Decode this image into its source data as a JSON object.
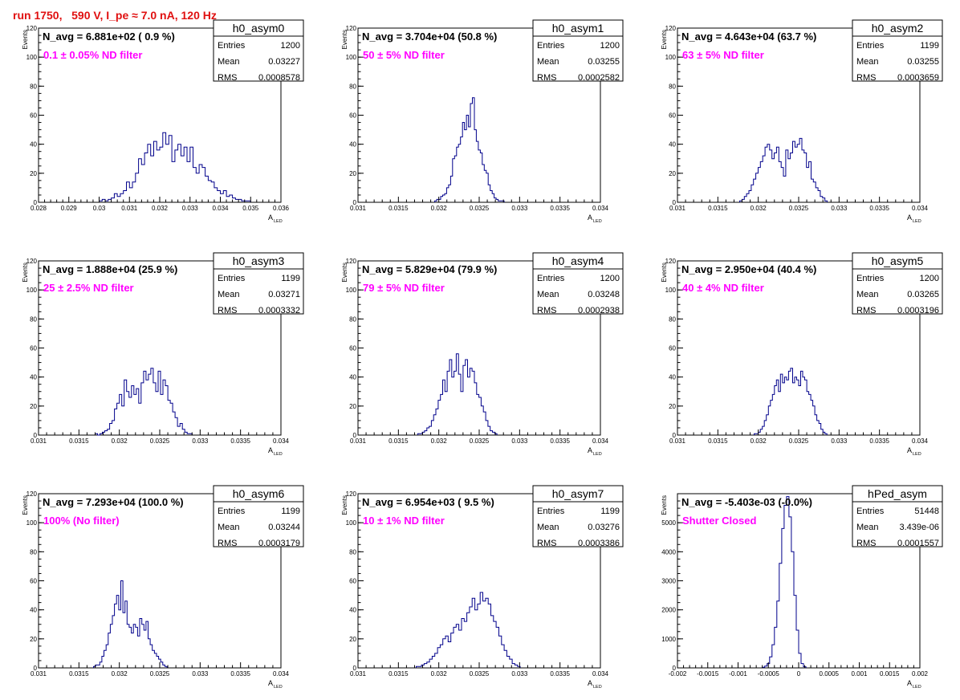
{
  "page": {
    "title": "run 1750,   590 V, I_pe ≈ 7.0 nA, 120 Hz"
  },
  "style": {
    "histColor": "#00008b",
    "annotColor": "#ff00ff",
    "titleColor": "#e01010",
    "axisColor": "#000000"
  },
  "chart_data": [
    {
      "type": "bar",
      "name": "h0_asym0",
      "nlabel": "N_avg = 6.881e+02 ( 0.9 %)",
      "annotation": "0.1 ± 0.05% ND filter",
      "stats": {
        "entries": "1200",
        "mean": "0.03227",
        "rms": "0.0008578"
      },
      "stat_labels": [
        "Entries",
        "Mean",
        "RMS"
      ],
      "xlabel": "A",
      "xlabel_sub": "LED",
      "ylabel": "Events",
      "xlim": [
        0.028,
        0.036
      ],
      "ylim": [
        0,
        120
      ],
      "xticks": [
        "0.028",
        "0.029",
        "0.03",
        "0.031",
        "0.032",
        "0.033",
        "0.034",
        "0.035",
        "0.036"
      ],
      "yticks": [
        "0",
        "20",
        "40",
        "60",
        "80",
        "100",
        "120"
      ],
      "bin_start": 0.03,
      "bin_width": 0.0001,
      "counts": [
        1,
        2,
        1,
        2,
        3,
        6,
        4,
        6,
        8,
        14,
        10,
        14,
        20,
        30,
        26,
        34,
        40,
        32,
        42,
        36,
        38,
        48,
        40,
        46,
        28,
        36,
        40,
        32,
        38,
        28,
        38,
        24,
        20,
        26,
        24,
        18,
        15,
        14,
        10,
        8,
        6,
        8,
        4,
        5,
        3,
        2,
        2,
        1,
        1,
        1
      ]
    },
    {
      "type": "bar",
      "name": "h0_asym1",
      "nlabel": "N_avg = 3.704e+04 (50.8 %)",
      "annotation": "50 ± 5% ND filter",
      "stats": {
        "entries": "1200",
        "mean": "0.03255",
        "rms": "0.0002582"
      },
      "stat_labels": [
        "Entries",
        "Mean",
        "RMS"
      ],
      "xlabel": "A",
      "xlabel_sub": "LED",
      "ylabel": "Events",
      "xlim": [
        0.031,
        0.034
      ],
      "ylim": [
        0,
        120
      ],
      "xticks": [
        "0.031",
        "0.0315",
        "0.032",
        "0.0325",
        "0.033",
        "0.0335",
        "0.034"
      ],
      "yticks": [
        "0",
        "20",
        "40",
        "60",
        "80",
        "100",
        "120"
      ],
      "bin_start": 0.03195,
      "bin_width": 2.45e-05,
      "counts": [
        1,
        2,
        2,
        4,
        5,
        6,
        10,
        12,
        18,
        30,
        32,
        38,
        40,
        45,
        55,
        50,
        60,
        52,
        68,
        72,
        50,
        42,
        36,
        34,
        26,
        22,
        20,
        12,
        8,
        6,
        3,
        2,
        1,
        1,
        1
      ]
    },
    {
      "type": "bar",
      "name": "h0_asym2",
      "nlabel": "N_avg = 4.643e+04 (63.7 %)",
      "annotation": "63 ± 5% ND filter",
      "stats": {
        "entries": "1199",
        "mean": "0.03255",
        "rms": "0.0003659"
      },
      "stat_labels": [
        "Entries",
        "Mean",
        "RMS"
      ],
      "xlabel": "A",
      "xlabel_sub": "LED",
      "ylabel": "Events",
      "xlim": [
        0.031,
        0.034
      ],
      "ylim": [
        0,
        120
      ],
      "xticks": [
        "0.031",
        "0.0315",
        "0.032",
        "0.0325",
        "0.033",
        "0.0335",
        "0.034"
      ],
      "yticks": [
        "0",
        "20",
        "40",
        "60",
        "80",
        "100",
        "120"
      ],
      "bin_start": 0.03177,
      "bin_width": 2.85e-05,
      "counts": [
        1,
        2,
        4,
        6,
        8,
        12,
        16,
        20,
        24,
        28,
        32,
        38,
        40,
        36,
        30,
        34,
        38,
        28,
        24,
        18,
        36,
        30,
        34,
        42,
        38,
        40,
        44,
        36,
        34,
        24,
        28,
        16,
        14,
        10,
        8,
        4,
        3,
        1
      ]
    },
    {
      "type": "bar",
      "name": "h0_asym3",
      "nlabel": "N_avg = 1.888e+04 (25.9 %)",
      "annotation": "25 ± 2.5% ND filter",
      "stats": {
        "entries": "1199",
        "mean": "0.03271",
        "rms": "0.0003332"
      },
      "stat_labels": [
        "Entries",
        "Mean",
        "RMS"
      ],
      "xlabel": "A",
      "xlabel_sub": "LED",
      "ylabel": "Events",
      "xlim": [
        0.031,
        0.034
      ],
      "ylim": [
        0,
        120
      ],
      "xticks": [
        "0.031",
        "0.0315",
        "0.032",
        "0.0325",
        "0.033",
        "0.0335",
        "0.034"
      ],
      "yticks": [
        "0",
        "20",
        "40",
        "60",
        "80",
        "100",
        "120"
      ],
      "bin_start": 0.0317,
      "bin_width": 3e-05,
      "counts": [
        1,
        0,
        1,
        2,
        3,
        4,
        8,
        10,
        18,
        22,
        28,
        20,
        38,
        30,
        26,
        34,
        28,
        32,
        22,
        36,
        44,
        38,
        42,
        46,
        36,
        30,
        44,
        28,
        38,
        34,
        24,
        22,
        16,
        12,
        6,
        8,
        4,
        2,
        1,
        1
      ]
    },
    {
      "type": "bar",
      "name": "h0_asym4",
      "nlabel": "N_avg = 5.829e+04 (79.9 %)",
      "annotation": "79 ± 5% ND filter",
      "stats": {
        "entries": "1200",
        "mean": "0.03248",
        "rms": "0.0002938"
      },
      "stat_labels": [
        "Entries",
        "Mean",
        "RMS"
      ],
      "xlabel": "A",
      "xlabel_sub": "LED",
      "ylabel": "Events",
      "xlim": [
        0.031,
        0.034
      ],
      "ylim": [
        0,
        120
      ],
      "xticks": [
        "0.031",
        "0.0315",
        "0.032",
        "0.0325",
        "0.033",
        "0.0335",
        "0.034"
      ],
      "yticks": [
        "0",
        "20",
        "40",
        "60",
        "80",
        "100",
        "120"
      ],
      "bin_start": 0.03174,
      "bin_width": 2.8e-05,
      "counts": [
        1,
        1,
        2,
        3,
        5,
        6,
        10,
        14,
        18,
        24,
        28,
        38,
        30,
        44,
        52,
        40,
        44,
        56,
        42,
        30,
        48,
        52,
        40,
        46,
        44,
        36,
        28,
        26,
        20,
        16,
        10,
        6,
        3,
        2,
        1
      ]
    },
    {
      "type": "bar",
      "name": "h0_asym5",
      "nlabel": "N_avg = 2.950e+04 (40.4 %)",
      "annotation": "40 ± 4% ND filter",
      "stats": {
        "entries": "1200",
        "mean": "0.03265",
        "rms": "0.0003196"
      },
      "stat_labels": [
        "Entries",
        "Mean",
        "RMS"
      ],
      "xlabel": "A",
      "xlabel_sub": "LED",
      "ylabel": "Events",
      "xlim": [
        0.031,
        0.034
      ],
      "ylim": [
        0,
        120
      ],
      "xticks": [
        "0.031",
        "0.0315",
        "0.032",
        "0.0325",
        "0.033",
        "0.0335",
        "0.034"
      ],
      "yticks": [
        "0",
        "20",
        "40",
        "60",
        "80",
        "100",
        "120"
      ],
      "bin_start": 0.03195,
      "bin_width": 2.5e-05,
      "counts": [
        1,
        1,
        2,
        4,
        6,
        10,
        14,
        20,
        24,
        28,
        34,
        38,
        30,
        42,
        36,
        40,
        38,
        44,
        46,
        36,
        40,
        38,
        34,
        44,
        40,
        38,
        30,
        28,
        24,
        20,
        14,
        10,
        8,
        4,
        2,
        1
      ]
    },
    {
      "type": "bar",
      "name": "h0_asym6",
      "nlabel": "N_avg = 7.293e+04 (100.0 %)",
      "annotation": "100% (No filter)",
      "stats": {
        "entries": "1199",
        "mean": "0.03244",
        "rms": "0.0003179"
      },
      "stat_labels": [
        "Entries",
        "Mean",
        "RMS"
      ],
      "xlabel": "A",
      "xlabel_sub": "LED",
      "ylabel": "Events",
      "xlim": [
        0.031,
        0.034
      ],
      "ylim": [
        0,
        120
      ],
      "xticks": [
        "0.031",
        "0.0315",
        "0.032",
        "0.0325",
        "0.033",
        "0.0335",
        "0.034"
      ],
      "yticks": [
        "0",
        "20",
        "40",
        "60",
        "80",
        "100",
        "120"
      ],
      "bin_start": 0.03168,
      "bin_width": 2.6e-05,
      "counts": [
        1,
        2,
        2,
        4,
        8,
        12,
        16,
        24,
        30,
        36,
        44,
        50,
        40,
        60,
        38,
        46,
        30,
        28,
        24,
        30,
        28,
        22,
        34,
        30,
        26,
        32,
        20,
        16,
        12,
        10,
        8,
        6,
        4,
        2,
        1
      ]
    },
    {
      "type": "bar",
      "name": "h0_asym7",
      "nlabel": "N_avg = 6.954e+03 ( 9.5 %)",
      "annotation": "10 ± 1% ND filter",
      "stats": {
        "entries": "1199",
        "mean": "0.03276",
        "rms": "0.0003386"
      },
      "stat_labels": [
        "Entries",
        "Mean",
        "RMS"
      ],
      "xlabel": "A",
      "xlabel_sub": "LED",
      "ylabel": "Events",
      "xlim": [
        0.031,
        0.034
      ],
      "ylim": [
        0,
        120
      ],
      "xticks": [
        "0.031",
        "0.0315",
        "0.032",
        "0.0325",
        "0.033",
        "0.0335",
        "0.034"
      ],
      "yticks": [
        "0",
        "20",
        "40",
        "60",
        "80",
        "100",
        "120"
      ],
      "bin_start": 0.03172,
      "bin_width": 3.3e-05,
      "counts": [
        1,
        1,
        2,
        3,
        4,
        6,
        8,
        10,
        14,
        16,
        20,
        22,
        18,
        24,
        28,
        30,
        26,
        34,
        32,
        38,
        42,
        48,
        40,
        44,
        52,
        46,
        48,
        44,
        36,
        32,
        28,
        22,
        16,
        12,
        8,
        6,
        3,
        2,
        1
      ]
    },
    {
      "type": "bar",
      "name": "hPed_asym",
      "nlabel": "N_avg = -5.403e-03 (-0.0%)",
      "annotation": "Shutter Closed",
      "stats": {
        "entries": "51448",
        "mean": "3.439e-06",
        "rms": "0.0001557"
      },
      "stat_labels": [
        "Entries",
        "Mean",
        "RMS"
      ],
      "xlabel": "A",
      "xlabel_sub": "LED",
      "ylabel": "Events",
      "xlim": [
        -0.002,
        0.002
      ],
      "ylim": [
        0,
        6000
      ],
      "xticks": [
        "-0.002",
        "-0.0015",
        "-0.001",
        "-0.0005",
        "0",
        "0.0005",
        "0.001",
        "0.0015",
        "0.002"
      ],
      "yticks": [
        "0",
        "1000",
        "2000",
        "3000",
        "4000",
        "5000"
      ],
      "bin_start": -0.0006,
      "bin_width": 4e-05,
      "counts": [
        20,
        60,
        150,
        380,
        800,
        1400,
        2300,
        3600,
        4800,
        5600,
        5900,
        5200,
        4000,
        2500,
        1300,
        500,
        150,
        40
      ]
    }
  ]
}
